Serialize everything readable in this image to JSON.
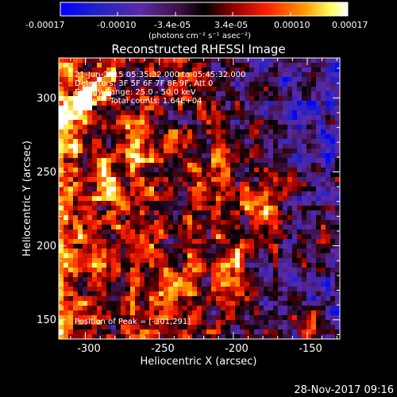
{
  "colorbar": {
    "ticks": [
      "-0.00017",
      "-0.00010",
      "-3.4e-05",
      "3.4e-05",
      "0.00010",
      "0.00017"
    ],
    "unit_label": "(photons cm",
    "unit_label_full": "(photons cm⁻² s⁻¹ asec⁻²)"
  },
  "chart_data": {
    "type": "heatmap",
    "title": "Reconstructed RHESSI Image",
    "xlabel": "Heliocentric X (arcsec)",
    "ylabel": "Heliocentric Y (arcsec)",
    "xlim": [
      -318,
      -128
    ],
    "ylim": [
      137,
      327
    ],
    "x_ticks": [
      "-300",
      "-250",
      "-200",
      "-150"
    ],
    "y_ticks": [
      "150",
      "200",
      "250",
      "300"
    ],
    "x_tick_values": [
      -300,
      -250,
      -200,
      -150
    ],
    "y_tick_values": [
      150,
      200,
      250,
      300
    ],
    "value_range": [
      -0.00017,
      0.00017
    ],
    "colormap": [
      "#0000ff",
      "#4a1ea0",
      "#7a3aa8",
      "#000000",
      "#8b0000",
      "#ff2000",
      "#ff9a00",
      "#ffff80",
      "#ffffff"
    ],
    "annotations": [
      "21-Jun-2015 05:35:32.000 to 05:45:32.000",
      "Detectors: 3F 5F 6F 7F 8F 9F, Att 0",
      "Energy Range: 25.0 - 50.0 keV",
      "Clean     Total counts: 1.64E+04"
    ],
    "peak_label": "Position of Peak = [-301,291]",
    "peak": [
      -301,
      291
    ]
  },
  "footer": {
    "timestamp": "28-Nov-2017 09:16"
  }
}
